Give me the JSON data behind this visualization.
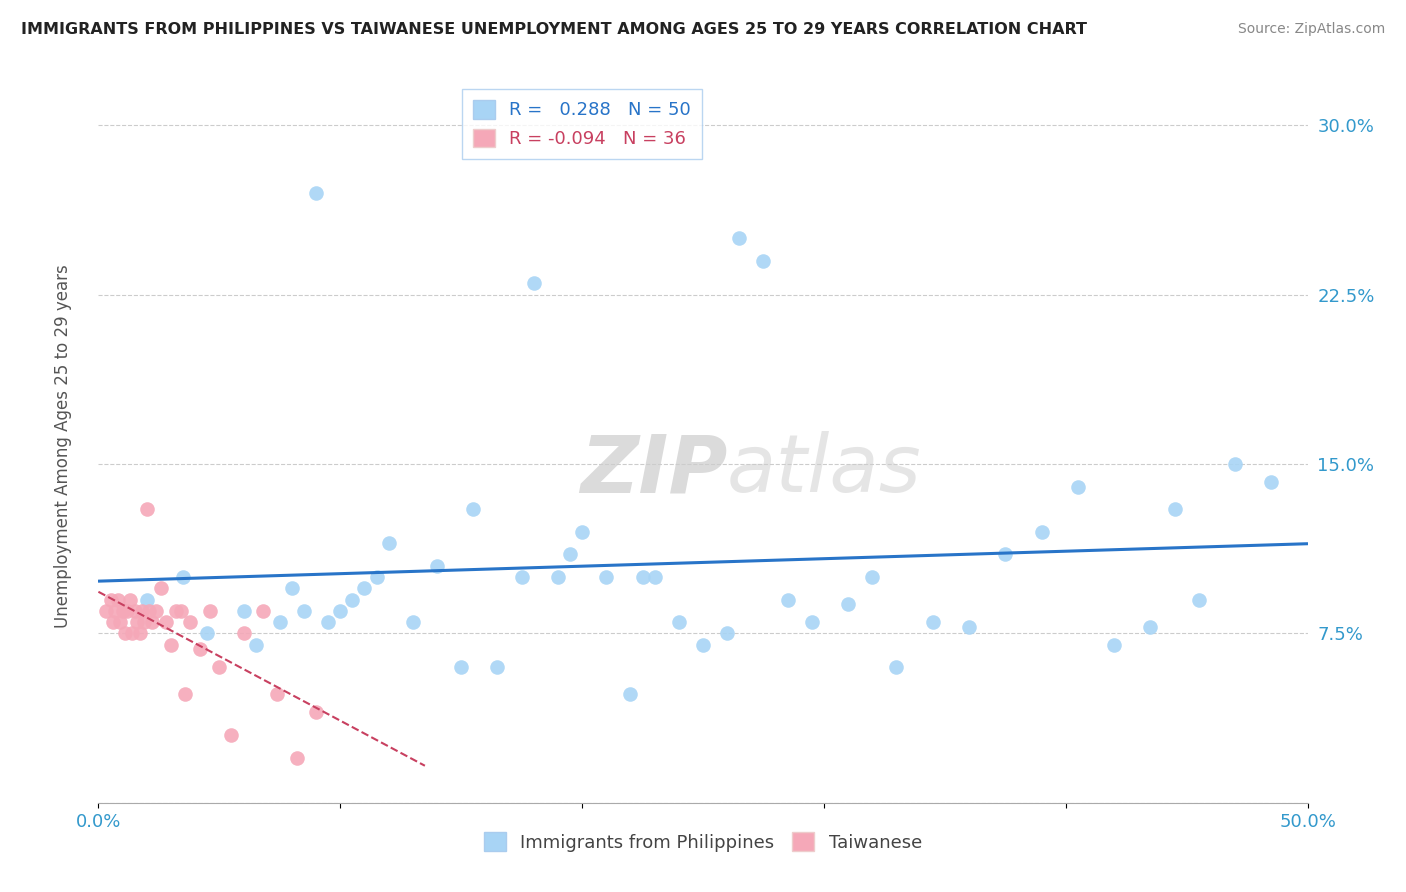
{
  "title": "IMMIGRANTS FROM PHILIPPINES VS TAIWANESE UNEMPLOYMENT AMONG AGES 25 TO 29 YEARS CORRELATION CHART",
  "source": "Source: ZipAtlas.com",
  "ylabel": "Unemployment Among Ages 25 to 29 years",
  "xlim": [
    0.0,
    0.5
  ],
  "ylim": [
    0.0,
    0.32
  ],
  "x_ticks": [
    0.0,
    0.1,
    0.2,
    0.3,
    0.4,
    0.5
  ],
  "y_ticks": [
    0.0,
    0.075,
    0.15,
    0.225,
    0.3
  ],
  "y_tick_labels": [
    "",
    "7.5%",
    "15.0%",
    "22.5%",
    "30.0%"
  ],
  "blue_R": 0.288,
  "blue_N": 50,
  "pink_R": -0.094,
  "pink_N": 36,
  "blue_color": "#A8D4F5",
  "pink_color": "#F5A8B8",
  "blue_line_color": "#2874C8",
  "pink_line_color": "#C84060",
  "watermark_zip": "ZIP",
  "watermark_atlas": "atlas",
  "blue_points_x": [
    0.02,
    0.035,
    0.045,
    0.06,
    0.065,
    0.075,
    0.08,
    0.085,
    0.09,
    0.095,
    0.1,
    0.105,
    0.11,
    0.115,
    0.12,
    0.13,
    0.14,
    0.15,
    0.155,
    0.165,
    0.175,
    0.18,
    0.19,
    0.195,
    0.2,
    0.21,
    0.22,
    0.225,
    0.23,
    0.24,
    0.25,
    0.26,
    0.265,
    0.275,
    0.285,
    0.295,
    0.31,
    0.32,
    0.33,
    0.345,
    0.36,
    0.375,
    0.39,
    0.405,
    0.42,
    0.435,
    0.445,
    0.455,
    0.47,
    0.485
  ],
  "blue_points_y": [
    0.09,
    0.1,
    0.075,
    0.085,
    0.07,
    0.08,
    0.095,
    0.085,
    0.27,
    0.08,
    0.085,
    0.09,
    0.095,
    0.1,
    0.115,
    0.08,
    0.105,
    0.06,
    0.13,
    0.06,
    0.1,
    0.23,
    0.1,
    0.11,
    0.12,
    0.1,
    0.048,
    0.1,
    0.1,
    0.08,
    0.07,
    0.075,
    0.25,
    0.24,
    0.09,
    0.08,
    0.088,
    0.1,
    0.06,
    0.08,
    0.078,
    0.11,
    0.12,
    0.14,
    0.07,
    0.078,
    0.13,
    0.09,
    0.15,
    0.142
  ],
  "pink_points_x": [
    0.003,
    0.005,
    0.006,
    0.007,
    0.008,
    0.009,
    0.01,
    0.011,
    0.012,
    0.013,
    0.014,
    0.015,
    0.016,
    0.017,
    0.018,
    0.019,
    0.02,
    0.021,
    0.022,
    0.024,
    0.026,
    0.028,
    0.03,
    0.032,
    0.034,
    0.036,
    0.038,
    0.042,
    0.046,
    0.05,
    0.055,
    0.06,
    0.068,
    0.074,
    0.082,
    0.09
  ],
  "pink_points_y": [
    0.085,
    0.09,
    0.08,
    0.085,
    0.09,
    0.08,
    0.085,
    0.075,
    0.085,
    0.09,
    0.075,
    0.085,
    0.08,
    0.075,
    0.085,
    0.08,
    0.13,
    0.085,
    0.08,
    0.085,
    0.095,
    0.08,
    0.07,
    0.085,
    0.085,
    0.048,
    0.08,
    0.068,
    0.085,
    0.06,
    0.03,
    0.075,
    0.085,
    0.048,
    0.02,
    0.04
  ]
}
